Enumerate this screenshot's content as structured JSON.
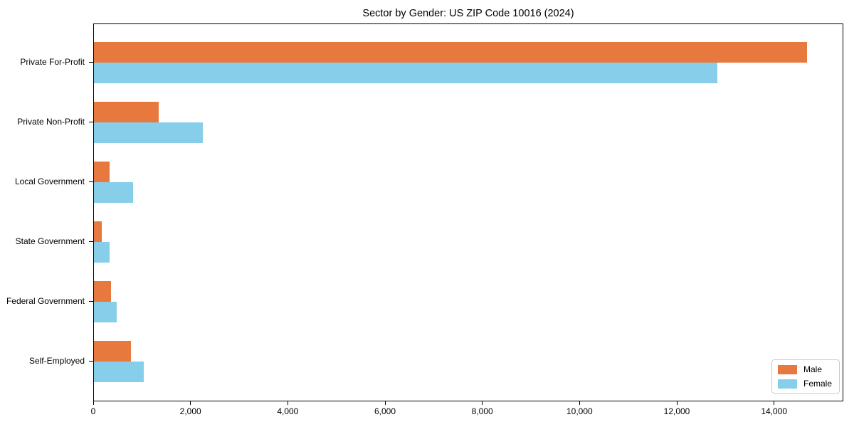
{
  "chart_data": {
    "type": "bar",
    "orientation": "horizontal",
    "title": "Sector by Gender: US ZIP Code 10016 (2024)",
    "categories": [
      "Private For-Profit",
      "Private Non-Profit",
      "Local Government",
      "State Government",
      "Federal Government",
      "Self-Employed"
    ],
    "series": [
      {
        "name": "Male",
        "color": "#e8793e",
        "values": [
          14690,
          1330,
          320,
          160,
          350,
          760
        ]
      },
      {
        "name": "Female",
        "color": "#87ceeb",
        "values": [
          12840,
          2250,
          800,
          320,
          470,
          1020
        ]
      }
    ],
    "xlabel": "",
    "ylabel": "",
    "xlim": [
      0,
      15424
    ],
    "x_ticks": [
      0,
      2000,
      4000,
      6000,
      8000,
      10000,
      12000,
      14000
    ],
    "x_tick_labels": [
      "0",
      "2,000",
      "4,000",
      "6,000",
      "8,000",
      "10,000",
      "12,000",
      "14,000"
    ],
    "grid": false,
    "legend": {
      "position": "lower right",
      "entries": [
        "Male",
        "Female"
      ]
    }
  }
}
